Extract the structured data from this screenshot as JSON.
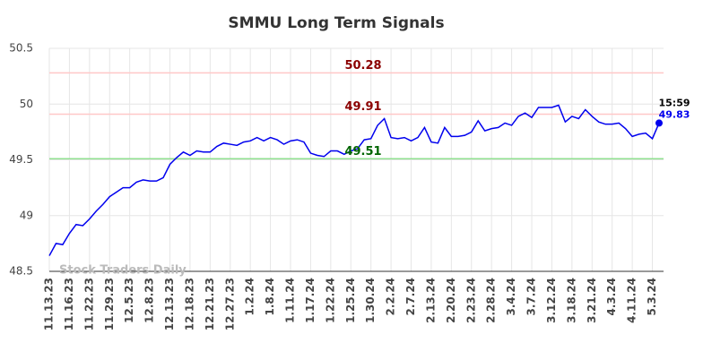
{
  "chart_data": {
    "type": "line",
    "title": "SMMU Long Term Signals",
    "categories": [
      "11.13.23",
      null,
      null,
      "11.16.23",
      null,
      null,
      "11.22.23",
      null,
      null,
      "11.29.23",
      null,
      null,
      "12.5.23",
      null,
      null,
      "12.8.23",
      null,
      null,
      "12.13.23",
      null,
      null,
      "12.18.23",
      null,
      null,
      "12.21.23",
      null,
      null,
      "12.27.23",
      null,
      null,
      "1.2.24",
      null,
      null,
      "1.8.24",
      null,
      null,
      "1.11.24",
      null,
      null,
      "1.17.24",
      null,
      null,
      "1.22.24",
      null,
      null,
      "1.25.24",
      null,
      null,
      "1.30.24",
      null,
      null,
      "2.2.24",
      null,
      null,
      "2.7.24",
      null,
      null,
      "2.13.24",
      null,
      null,
      "2.20.24",
      null,
      null,
      "2.23.24",
      null,
      null,
      "2.28.24",
      null,
      null,
      "3.4.24",
      null,
      null,
      "3.7.24",
      null,
      null,
      "3.12.24",
      null,
      null,
      "3.18.24",
      null,
      null,
      "3.21.24",
      null,
      null,
      "4.3.24",
      null,
      null,
      "4.11.24",
      null,
      null,
      "5.3.24",
      null
    ],
    "values": [
      48.64,
      48.75,
      48.74,
      48.84,
      48.92,
      48.91,
      48.97,
      49.04,
      49.1,
      49.17,
      49.21,
      49.25,
      49.25,
      49.3,
      49.32,
      49.31,
      49.31,
      49.34,
      49.46,
      49.52,
      49.57,
      49.54,
      49.58,
      49.57,
      49.57,
      49.62,
      49.65,
      49.64,
      49.63,
      49.66,
      49.67,
      49.7,
      49.67,
      49.7,
      49.68,
      49.64,
      49.67,
      49.68,
      49.66,
      49.56,
      49.54,
      49.53,
      49.58,
      49.58,
      49.55,
      49.58,
      49.6,
      49.68,
      49.69,
      49.81,
      49.87,
      49.7,
      49.69,
      49.7,
      49.67,
      49.7,
      49.79,
      49.66,
      49.65,
      49.79,
      49.71,
      49.71,
      49.72,
      49.75,
      49.85,
      49.76,
      49.78,
      49.79,
      49.83,
      49.81,
      49.89,
      49.92,
      49.88,
      49.97,
      49.97,
      49.97,
      49.99,
      49.84,
      49.89,
      49.87,
      49.95,
      49.89,
      49.84,
      49.82,
      49.82,
      49.83,
      49.78,
      49.71,
      49.73,
      49.74,
      49.69,
      49.83
    ],
    "color": "#0000ee",
    "ylim": [
      48.5,
      50.5
    ],
    "yticks": [
      48.5,
      49,
      49.5,
      50,
      50.5
    ],
    "grid": true,
    "reference_lines": [
      {
        "value": 50.28,
        "color": "#ffc8c8",
        "label_color": "#8b0000"
      },
      {
        "value": 49.91,
        "color": "#ffc8c8",
        "label_color": "#8b0000"
      },
      {
        "value": 49.51,
        "color": "#90e090",
        "label_color": "#006400"
      }
    ],
    "last_time": "15:59",
    "watermark": "Stock Traders Daily"
  }
}
